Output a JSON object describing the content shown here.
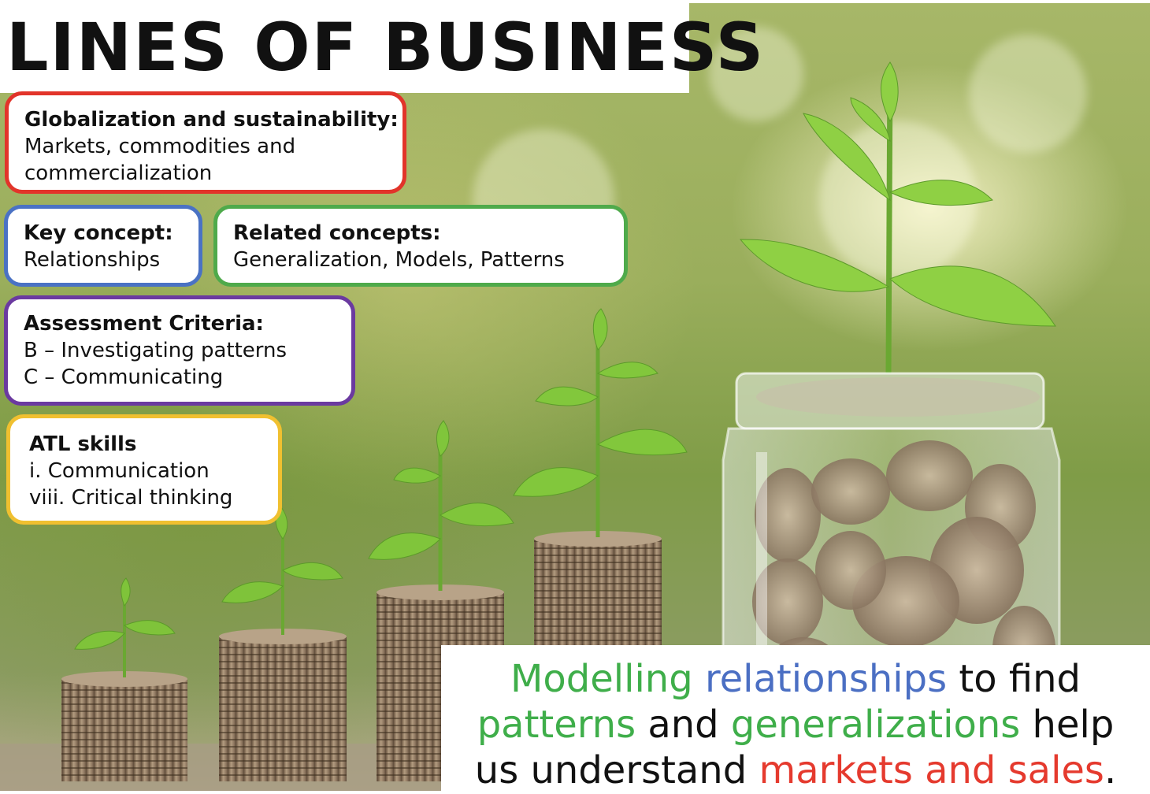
{
  "title": "LINES OF BUSINESS",
  "globalization": {
    "heading": "Globalization and sustainability:",
    "line1": "Markets, commodities and",
    "line2": "commercialization"
  },
  "key_concept": {
    "heading": "Key concept:",
    "value": "Relationships"
  },
  "related_concepts": {
    "heading": "Related concepts:",
    "value": "Generalization, Models, Patterns"
  },
  "assessment": {
    "heading": "Assessment Criteria:",
    "items": [
      "B – Investigating patterns",
      "C – Communicating"
    ]
  },
  "atl": {
    "heading": "ATL skills",
    "items": [
      "i. Communication",
      "viii. Critical thinking"
    ]
  },
  "summary": {
    "w1": "Modelling",
    "w2": "relationships",
    "w3": "to find",
    "w4": "patterns",
    "w5": "and",
    "w6": "generalizations",
    "w7": "help",
    "w8": "us understand",
    "w9": "markets and sales",
    "w10": "."
  },
  "colors": {
    "globalization_border": "#e2342a",
    "key_concept_border": "#4a72c4",
    "related_border": "#4faa4b",
    "assessment_border": "#6b3aa0",
    "atl_border": "#f0c030",
    "highlight_green": "#3fae4a",
    "highlight_blue": "#4b6fc3",
    "highlight_red": "#e53a2e"
  }
}
